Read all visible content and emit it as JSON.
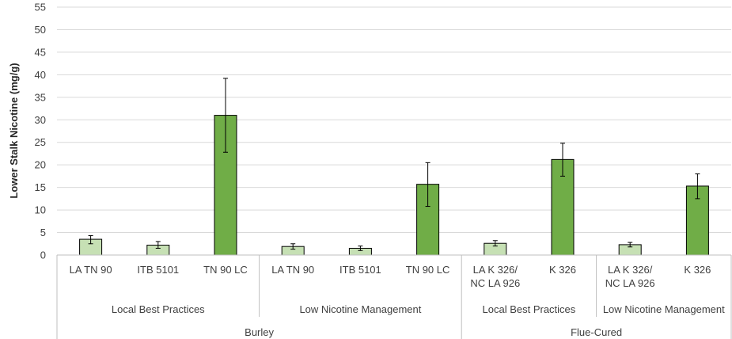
{
  "chart_data": {
    "type": "bar",
    "ylabel": "Lower Stalk Nicotine (mg/g)",
    "xlabel": "",
    "ylim": [
      0,
      55
    ],
    "yticks": [
      0,
      5,
      10,
      15,
      20,
      25,
      30,
      35,
      40,
      45,
      50,
      55
    ],
    "grid": true,
    "legend": "none",
    "colors": {
      "light": "#c6e0b4",
      "dark": "#70ad47",
      "edge": "#000000",
      "grid": "#d9d9d9",
      "axis": "#bfbfbf"
    },
    "bars": [
      {
        "label": "LA TN 90",
        "value": 3.5,
        "err_low": 2.5,
        "err_high": 4.3,
        "shade": "light"
      },
      {
        "label": "ITB 5101",
        "value": 2.2,
        "err_low": 1.5,
        "err_high": 3.0,
        "shade": "light"
      },
      {
        "label": "TN 90 LC",
        "value": 31.0,
        "err_low": 22.8,
        "err_high": 39.2,
        "shade": "dark"
      },
      {
        "label": "LA TN 90",
        "value": 1.9,
        "err_low": 1.3,
        "err_high": 2.5,
        "shade": "light"
      },
      {
        "label": "ITB 5101",
        "value": 1.5,
        "err_low": 1.0,
        "err_high": 2.0,
        "shade": "light"
      },
      {
        "label": "TN 90 LC",
        "value": 15.7,
        "err_low": 10.8,
        "err_high": 20.5,
        "shade": "dark"
      },
      {
        "label": "LA K 326/\nNC LA 926",
        "value": 2.6,
        "err_low": 2.0,
        "err_high": 3.2,
        "shade": "light"
      },
      {
        "label": "K 326",
        "value": 21.2,
        "err_low": 17.5,
        "err_high": 24.8,
        "shade": "dark"
      },
      {
        "label": "LA K 326/\nNC LA 926",
        "value": 2.3,
        "err_low": 1.8,
        "err_high": 2.8,
        "shade": "light"
      },
      {
        "label": "K 326",
        "value": 15.3,
        "err_low": 12.5,
        "err_high": 18.0,
        "shade": "dark"
      }
    ],
    "groups": [
      {
        "label": "Local Best Practices",
        "span": [
          0,
          3
        ]
      },
      {
        "label": "Low Nicotine Management",
        "span": [
          3,
          6
        ]
      },
      {
        "label": "Local Best Practices",
        "span": [
          6,
          8
        ]
      },
      {
        "label": "Low Nicotine Management",
        "span": [
          8,
          10
        ]
      }
    ],
    "supergroups": [
      {
        "label": "Burley",
        "span": [
          0,
          6
        ]
      },
      {
        "label": "Flue-Cured",
        "span": [
          6,
          10
        ]
      }
    ]
  }
}
